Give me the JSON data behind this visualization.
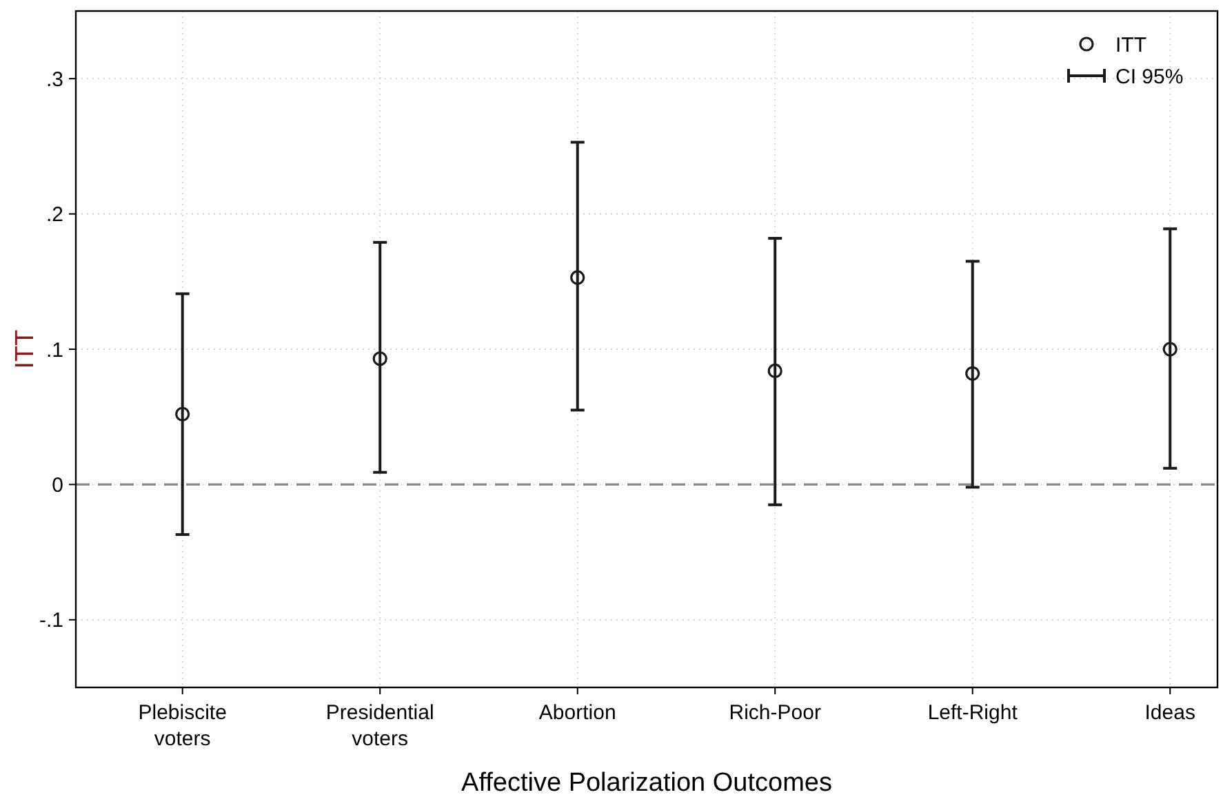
{
  "chart_data": {
    "type": "scatter",
    "xlabel": "Affective Polarization Outcomes",
    "ylabel": "ITT",
    "categories": [
      "Plebiscite voters",
      "Presidential voters",
      "Abortion",
      "Rich-Poor",
      "Left-Right",
      "Ideas"
    ],
    "series": [
      {
        "name": "ITT",
        "color": "#1a1a1a",
        "values": [
          0.052,
          0.093,
          0.153,
          0.084,
          0.082,
          0.1
        ],
        "errors": [
          [
            -0.037,
            0.141
          ],
          [
            0.009,
            0.179
          ],
          [
            0.055,
            0.253
          ],
          [
            -0.015,
            0.182
          ],
          [
            -0.002,
            0.165
          ],
          [
            0.012,
            0.189
          ]
        ]
      }
    ],
    "ylim": [
      -0.15,
      0.35
    ],
    "yticks": [
      {
        "value": -0.1,
        "label": "-.1"
      },
      0,
      {
        "value": 0.1,
        "label": ".1"
      },
      {
        "value": 0.2,
        "label": ".2"
      },
      {
        "value": 0.3,
        "label": ".3"
      }
    ],
    "grid": true,
    "marker": "circle",
    "legend": "top right",
    "ref_lines": [
      {
        "axis": "y",
        "value": 0,
        "color": "#888888",
        "line_style": "dashed"
      }
    ],
    "annotations": [
      "CI 95%"
    ]
  }
}
